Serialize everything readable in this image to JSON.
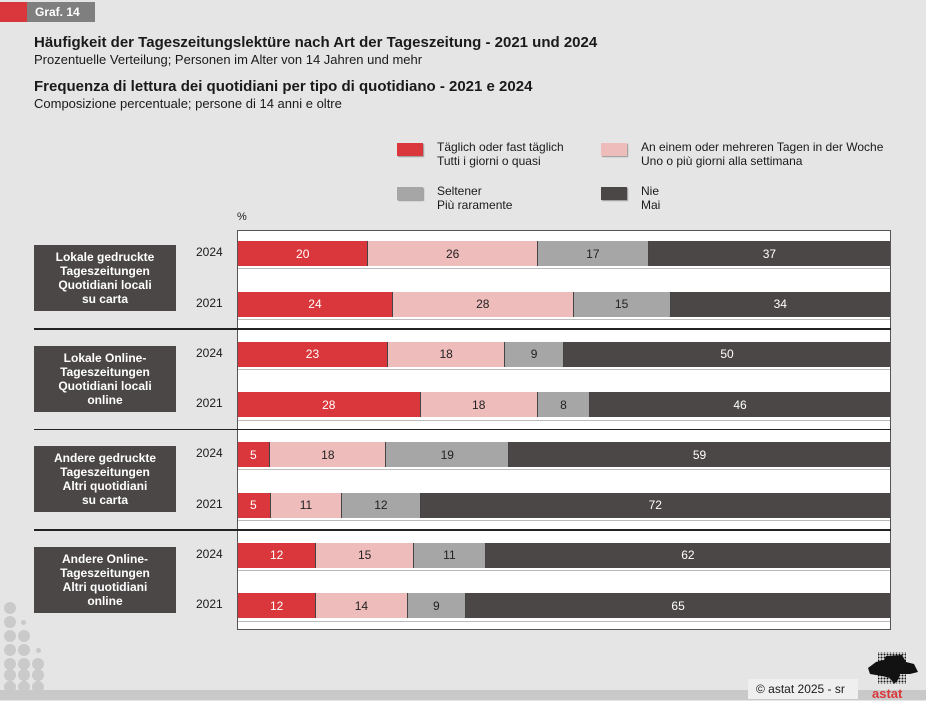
{
  "header": {
    "graf_label": "Graf. 14",
    "title_de": "Häufigkeit der Tageszeitungslektüre nach Art der Tageszeitung - 2021 und 2024",
    "subtitle_de": "Prozentuelle Verteilung; Personen im Alter von 14 Jahren und mehr",
    "title_it": "Frequenza di lettura dei quotidiani per tipo di quotidiano - 2021 e 2024",
    "subtitle_it": "Composizione percentuale; persone di 14 anni e oltre"
  },
  "footer": {
    "copyright": "© astat 2025 - sr",
    "logo_text": "astat"
  },
  "chart_data": {
    "type": "bar",
    "orientation": "horizontal",
    "stacked": true,
    "normalized": true,
    "unit_label": "%",
    "title": "Häufigkeit der Tageszeitungslektüre nach Art der Tageszeitung - 2021 und 2024",
    "xlim": [
      0,
      100
    ],
    "legend_position": "top-right",
    "series": [
      {
        "name": "Täglich oder fast täglich\nTutti i giorni o quasi",
        "label_de": "Täglich oder fast täglich",
        "label_it": "Tutti i giorni o quasi",
        "color": "#d9373b",
        "text_color": "#ffffff"
      },
      {
        "name": "An einem oder mehreren Tagen in der Woche\nUno o più giorni alla settimana",
        "label_de": "An einem oder mehreren Tagen in der Woche",
        "label_it": "Uno o più giorni alla settimana",
        "color": "#efbcbc",
        "text_color": "#222222"
      },
      {
        "name": "Seltener\nPiù raramente",
        "label_de": "Seltener",
        "label_it": "Più raramente",
        "color": "#a6a6a6",
        "text_color": "#222222"
      },
      {
        "name": "Nie\nMai",
        "label_de": "Nie",
        "label_it": "Mai",
        "color": "#4b4747",
        "text_color": "#ffffff"
      }
    ],
    "groups": [
      {
        "label": "Lokale gedruckte\nTageszeitungen\nQuotidiani locali\nsu carta",
        "rows": [
          {
            "year": "2024",
            "values": [
              20,
              26,
              17,
              37
            ]
          },
          {
            "year": "2021",
            "values": [
              24,
              28,
              15,
              34
            ]
          }
        ]
      },
      {
        "label": "Lokale Online-\nTageszeitungen\nQuotidiani locali\nonline",
        "rows": [
          {
            "year": "2024",
            "values": [
              23,
              18,
              9,
              50
            ]
          },
          {
            "year": "2021",
            "values": [
              28,
              18,
              8,
              46
            ]
          }
        ]
      },
      {
        "label": "Andere gedruckte\nTageszeitungen\nAltri quotidiani\nsu carta",
        "rows": [
          {
            "year": "2024",
            "values": [
              5,
              18,
              19,
              59
            ]
          },
          {
            "year": "2021",
            "values": [
              5,
              11,
              12,
              72
            ]
          }
        ]
      },
      {
        "label": "Andere Online-\nTageszeitungen\nAltri quotidiani\nonline",
        "rows": [
          {
            "year": "2024",
            "values": [
              12,
              15,
              11,
              62
            ]
          },
          {
            "year": "2021",
            "values": [
              12,
              14,
              9,
              65
            ]
          }
        ]
      }
    ]
  }
}
